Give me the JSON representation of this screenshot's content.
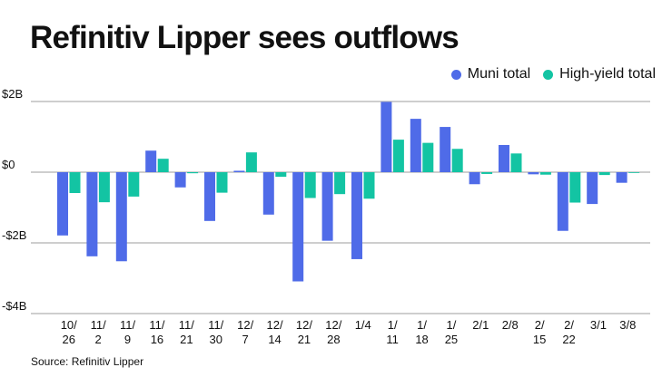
{
  "chart_data": {
    "type": "bar",
    "title": "Refinitiv Lipper sees outflows",
    "xlabel": "",
    "ylabel": "",
    "ylim": [
      -4,
      2
    ],
    "y_unit": "billions USD",
    "yticks": [
      {
        "value": 2,
        "label": "$2B"
      },
      {
        "value": 0,
        "label": "$0"
      },
      {
        "value": -2,
        "label": "-$2B"
      },
      {
        "value": -4,
        "label": "-$4B"
      }
    ],
    "grid": true,
    "legend_position": "top-right",
    "categories": [
      "10/26",
      "11/2",
      "11/9",
      "11/16",
      "11/21",
      "11/30",
      "12/7",
      "12/14",
      "12/21",
      "12/28",
      "1/4",
      "1/11",
      "1/18",
      "1/25",
      "2/1",
      "2/8",
      "2/15",
      "2/22",
      "3/1",
      "3/8"
    ],
    "category_labels": [
      [
        "10/",
        "26"
      ],
      [
        "11/",
        "2"
      ],
      [
        "11/",
        "9"
      ],
      [
        "11/",
        "16"
      ],
      [
        "11/",
        "21"
      ],
      [
        "11/",
        "30"
      ],
      [
        "12/",
        "7"
      ],
      [
        "12/",
        "14"
      ],
      [
        "12/",
        "21"
      ],
      [
        "12/",
        "28"
      ],
      [
        "1/4"
      ],
      [
        "1/",
        "11"
      ],
      [
        "1/",
        "18"
      ],
      [
        "1/",
        "25"
      ],
      [
        "2/1"
      ],
      [
        "2/8"
      ],
      [
        "2/",
        "15"
      ],
      [
        "2/",
        "22"
      ],
      [
        "3/1"
      ],
      [
        "3/8"
      ]
    ],
    "series": [
      {
        "name": "Muni total",
        "color": "#4F6BE8",
        "values": [
          -1.79,
          -2.38,
          -2.52,
          0.61,
          -0.43,
          -1.38,
          0.04,
          -1.2,
          -3.09,
          -1.94,
          -2.46,
          1.99,
          1.51,
          1.28,
          -0.34,
          0.77,
          -0.06,
          -1.66,
          -0.9,
          -0.3
        ]
      },
      {
        "name": "High-yield total",
        "color": "#13C4A3",
        "values": [
          -0.59,
          -0.85,
          -0.69,
          0.38,
          -0.03,
          -0.58,
          0.56,
          -0.13,
          -0.73,
          -0.62,
          -0.75,
          0.92,
          0.83,
          0.66,
          -0.05,
          0.53,
          -0.07,
          -0.86,
          -0.08,
          -0.01
        ]
      }
    ]
  },
  "source": "Source: Refinitiv Lipper"
}
